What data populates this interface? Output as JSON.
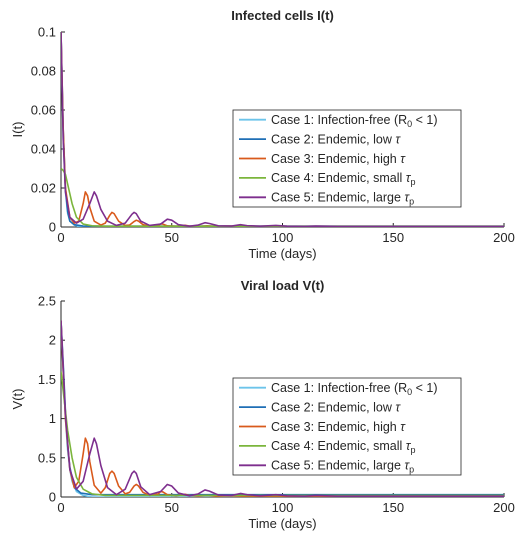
{
  "chart_data": [
    {
      "type": "line",
      "title": "Infected cells I(t)",
      "xlabel": "Time (days)",
      "ylabel": "I(t)",
      "xlim": [
        0,
        200
      ],
      "ylim": [
        0,
        0.1
      ],
      "xticks": [
        "0",
        "50",
        "100",
        "150",
        "200"
      ],
      "yticks": [
        "0",
        "0.02",
        "0.04",
        "0.06",
        "0.08",
        "0.1"
      ],
      "legend_position": "right",
      "series": [
        {
          "name_parts": {
            "main": "Case 1: Infection-free (R",
            "sub": "0",
            "tail": " < 1)"
          },
          "color": "#6cc4ea",
          "width": 1.6,
          "points": [
            [
              0,
              0.1
            ],
            [
              1,
              0.045
            ],
            [
              2,
              0.018
            ],
            [
              3,
              0.007
            ],
            [
              4,
              0.003
            ],
            [
              6,
              0.001
            ],
            [
              8,
              0.0002
            ],
            [
              12,
              0
            ],
            [
              200,
              0
            ]
          ]
        },
        {
          "name_parts": {
            "main": "Case 2: Endemic, low ",
            "sub": "",
            "tail": "",
            "tau": "τ"
          },
          "color": "#1f6fb5",
          "width": 1.6,
          "points": [
            [
              0,
              0.1
            ],
            [
              1,
              0.05
            ],
            [
              2,
              0.02
            ],
            [
              3,
              0.008
            ],
            [
              4,
              0.003
            ],
            [
              6,
              0.0012
            ],
            [
              10,
              0.0005
            ],
            [
              14,
              0.0004
            ],
            [
              200,
              0.0004
            ]
          ]
        },
        {
          "name_parts": {
            "main": "Case 3: Endemic, high ",
            "sub": "",
            "tail": "",
            "tau": "τ"
          },
          "color": "#d95a1c",
          "width": 1.6,
          "points": [
            [
              0,
              0.1
            ],
            [
              1,
              0.05
            ],
            [
              2,
              0.02
            ],
            [
              4,
              0.005
            ],
            [
              6,
              0.002
            ],
            [
              8,
              0.003
            ],
            [
              10,
              0.012
            ],
            [
              11,
              0.018
            ],
            [
              12,
              0.016
            ],
            [
              13,
              0.01
            ],
            [
              15,
              0.003
            ],
            [
              18,
              0.001
            ],
            [
              20,
              0.002
            ],
            [
              22,
              0.006
            ],
            [
              23,
              0.0075
            ],
            [
              24,
              0.0068
            ],
            [
              26,
              0.003
            ],
            [
              29,
              0.0008
            ],
            [
              31,
              0.001
            ],
            [
              33,
              0.0028
            ],
            [
              34,
              0.0035
            ],
            [
              35,
              0.003
            ],
            [
              37,
              0.0012
            ],
            [
              40,
              0.0005
            ],
            [
              44,
              0.0008
            ],
            [
              45,
              0.0016
            ],
            [
              46,
              0.0015
            ],
            [
              48,
              0.0006
            ],
            [
              52,
              0.0004
            ],
            [
              56,
              0.0009
            ],
            [
              58,
              0.0005
            ],
            [
              62,
              0.0003
            ],
            [
              66,
              0.0006
            ],
            [
              70,
              0.0003
            ],
            [
              76,
              0.0005
            ],
            [
              82,
              0.0003
            ],
            [
              200,
              0.0003
            ]
          ]
        },
        {
          "name_parts": {
            "main": "Case 4: Endemic, small ",
            "sub": "p",
            "tail": "",
            "tau": "τ"
          },
          "color": "#7bb53c",
          "width": 1.6,
          "points": [
            [
              0,
              0.03
            ],
            [
              1,
              0.029
            ],
            [
              2,
              0.027
            ],
            [
              3,
              0.022
            ],
            [
              5,
              0.012
            ],
            [
              7,
              0.005
            ],
            [
              10,
              0.0015
            ],
            [
              14,
              0.0006
            ],
            [
              20,
              0.0004
            ],
            [
              200,
              0.0004
            ]
          ]
        },
        {
          "name_parts": {
            "main": "Case 5: Endemic, large ",
            "sub": "p",
            "tail": "",
            "tau": "τ"
          },
          "color": "#7e2f8e",
          "width": 1.6,
          "points": [
            [
              0,
              0.1
            ],
            [
              1,
              0.045
            ],
            [
              2,
              0.018
            ],
            [
              4,
              0.005
            ],
            [
              7,
              0.002
            ],
            [
              10,
              0.004
            ],
            [
              13,
              0.012
            ],
            [
              15,
              0.018
            ],
            [
              16,
              0.016
            ],
            [
              18,
              0.009
            ],
            [
              21,
              0.003
            ],
            [
              25,
              0.0008
            ],
            [
              29,
              0.002
            ],
            [
              32,
              0.0065
            ],
            [
              33,
              0.0075
            ],
            [
              34,
              0.0068
            ],
            [
              36,
              0.003
            ],
            [
              40,
              0.0008
            ],
            [
              45,
              0.0015
            ],
            [
              48,
              0.004
            ],
            [
              50,
              0.0035
            ],
            [
              53,
              0.0012
            ],
            [
              58,
              0.0004
            ],
            [
              62,
              0.001
            ],
            [
              65,
              0.0022
            ],
            [
              67,
              0.0018
            ],
            [
              71,
              0.0006
            ],
            [
              77,
              0.0005
            ],
            [
              81,
              0.0012
            ],
            [
              84,
              0.0007
            ],
            [
              90,
              0.0004
            ],
            [
              97,
              0.0008
            ],
            [
              102,
              0.0004
            ],
            [
              110,
              0.0003
            ],
            [
              115,
              0.0005
            ],
            [
              125,
              0.0003
            ],
            [
              200,
              0.0003
            ]
          ]
        }
      ]
    },
    {
      "type": "line",
      "title": "Viral load V(t)",
      "xlabel": "Time (days)",
      "ylabel": "V(t)",
      "xlim": [
        0,
        200
      ],
      "ylim": [
        0,
        2.5
      ],
      "xticks": [
        "0",
        "50",
        "100",
        "150",
        "200"
      ],
      "yticks": [
        "0",
        "0.5",
        "1",
        "1.5",
        "2",
        "2.5"
      ],
      "legend_position": "right",
      "series": [
        {
          "name_parts": {
            "main": "Case 1: Infection-free (R",
            "sub": "0",
            "tail": " < 1)"
          },
          "color": "#6cc4ea",
          "width": 1.6,
          "points": [
            [
              0,
              2.2
            ],
            [
              1,
              1.6
            ],
            [
              2,
              1.0
            ],
            [
              3,
              0.6
            ],
            [
              4,
              0.35
            ],
            [
              5,
              0.2
            ],
            [
              7,
              0.07
            ],
            [
              10,
              0.02
            ],
            [
              14,
              0
            ],
            [
              200,
              0
            ]
          ]
        },
        {
          "name_parts": {
            "main": "Case 2: Endemic, low ",
            "sub": "",
            "tail": "",
            "tau": "τ"
          },
          "color": "#1f6fb5",
          "width": 1.6,
          "points": [
            [
              0,
              2.25
            ],
            [
              1,
              1.7
            ],
            [
              2,
              1.1
            ],
            [
              3,
              0.65
            ],
            [
              4,
              0.38
            ],
            [
              6,
              0.12
            ],
            [
              9,
              0.05
            ],
            [
              14,
              0.03
            ],
            [
              200,
              0.03
            ]
          ]
        },
        {
          "name_parts": {
            "main": "Case 3: Endemic, high ",
            "sub": "",
            "tail": "",
            "tau": "τ"
          },
          "color": "#d95a1c",
          "width": 1.6,
          "points": [
            [
              0,
              2.25
            ],
            [
              1,
              1.6
            ],
            [
              2,
              1.0
            ],
            [
              4,
              0.35
            ],
            [
              6,
              0.12
            ],
            [
              8,
              0.2
            ],
            [
              10,
              0.55
            ],
            [
              11,
              0.75
            ],
            [
              12,
              0.68
            ],
            [
              13,
              0.45
            ],
            [
              15,
              0.15
            ],
            [
              18,
              0.05
            ],
            [
              20,
              0.12
            ],
            [
              22,
              0.3
            ],
            [
              23,
              0.33
            ],
            [
              24,
              0.3
            ],
            [
              26,
              0.14
            ],
            [
              29,
              0.04
            ],
            [
              31,
              0.06
            ],
            [
              33,
              0.14
            ],
            [
              34,
              0.16
            ],
            [
              35,
              0.14
            ],
            [
              37,
              0.06
            ],
            [
              40,
              0.02
            ],
            [
              44,
              0.04
            ],
            [
              45,
              0.07
            ],
            [
              46,
              0.065
            ],
            [
              48,
              0.03
            ],
            [
              52,
              0.015
            ],
            [
              56,
              0.035
            ],
            [
              58,
              0.02
            ],
            [
              62,
              0.012
            ],
            [
              66,
              0.02
            ],
            [
              70,
              0.01
            ],
            [
              76,
              0.015
            ],
            [
              82,
              0.01
            ],
            [
              200,
              0.01
            ]
          ]
        },
        {
          "name_parts": {
            "main": "Case 4: Endemic, small ",
            "sub": "p",
            "tail": "",
            "tau": "τ"
          },
          "color": "#7bb53c",
          "width": 1.6,
          "points": [
            [
              0,
              1.6
            ],
            [
              1,
              1.35
            ],
            [
              2,
              1.1
            ],
            [
              3,
              0.85
            ],
            [
              5,
              0.5
            ],
            [
              7,
              0.25
            ],
            [
              10,
              0.1
            ],
            [
              14,
              0.04
            ],
            [
              20,
              0.02
            ],
            [
              200,
              0.02
            ]
          ]
        },
        {
          "name_parts": {
            "main": "Case 5: Endemic, large ",
            "sub": "p",
            "tail": "",
            "tau": "τ"
          },
          "color": "#7e2f8e",
          "width": 1.6,
          "points": [
            [
              0,
              2.25
            ],
            [
              1,
              1.65
            ],
            [
              2,
              1.05
            ],
            [
              4,
              0.35
            ],
            [
              7,
              0.1
            ],
            [
              10,
              0.2
            ],
            [
              13,
              0.55
            ],
            [
              15,
              0.75
            ],
            [
              16,
              0.68
            ],
            [
              18,
              0.4
            ],
            [
              21,
              0.12
            ],
            [
              25,
              0.03
            ],
            [
              29,
              0.1
            ],
            [
              32,
              0.3
            ],
            [
              33,
              0.33
            ],
            [
              34,
              0.3
            ],
            [
              36,
              0.13
            ],
            [
              40,
              0.03
            ],
            [
              45,
              0.07
            ],
            [
              48,
              0.16
            ],
            [
              50,
              0.14
            ],
            [
              53,
              0.05
            ],
            [
              58,
              0.015
            ],
            [
              62,
              0.04
            ],
            [
              65,
              0.09
            ],
            [
              67,
              0.075
            ],
            [
              71,
              0.025
            ],
            [
              77,
              0.02
            ],
            [
              81,
              0.045
            ],
            [
              84,
              0.03
            ],
            [
              90,
              0.015
            ],
            [
              97,
              0.03
            ],
            [
              102,
              0.015
            ],
            [
              110,
              0.01
            ],
            [
              115,
              0.02
            ],
            [
              125,
              0.01
            ],
            [
              200,
              0.01
            ]
          ]
        }
      ]
    }
  ]
}
